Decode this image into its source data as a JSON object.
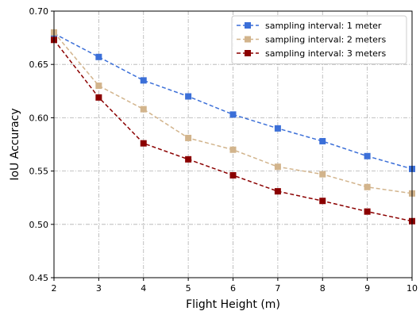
{
  "chart_data": {
    "type": "line",
    "xlabel": "Flight Height (m)",
    "ylabel": "IoU Accuracy",
    "x": [
      2,
      3,
      4,
      5,
      6,
      7,
      8,
      9,
      10
    ],
    "xlim": [
      2,
      10
    ],
    "ylim": [
      0.45,
      0.7
    ],
    "xticks": [
      "2",
      "3",
      "4",
      "5",
      "6",
      "7",
      "8",
      "9",
      "10"
    ],
    "yticks": [
      "0.45",
      "0.50",
      "0.55",
      "0.60",
      "0.65",
      "0.70"
    ],
    "grid": true,
    "legend_position": "top-right",
    "series": [
      {
        "name": "sampling interval: 1 meter",
        "color": "#3b6fd8",
        "values": [
          0.679,
          0.657,
          0.635,
          0.62,
          0.603,
          0.59,
          0.578,
          0.564,
          0.552
        ]
      },
      {
        "name": "sampling interval: 2 meters",
        "color": "#d2b48c",
        "values": [
          0.68,
          0.63,
          0.608,
          0.581,
          0.57,
          0.554,
          0.547,
          0.535,
          0.529
        ]
      },
      {
        "name": "sampling interval: 3 meters",
        "color": "#8b0000",
        "values": [
          0.673,
          0.619,
          0.576,
          0.561,
          0.546,
          0.531,
          0.522,
          0.512,
          0.503
        ]
      }
    ]
  }
}
